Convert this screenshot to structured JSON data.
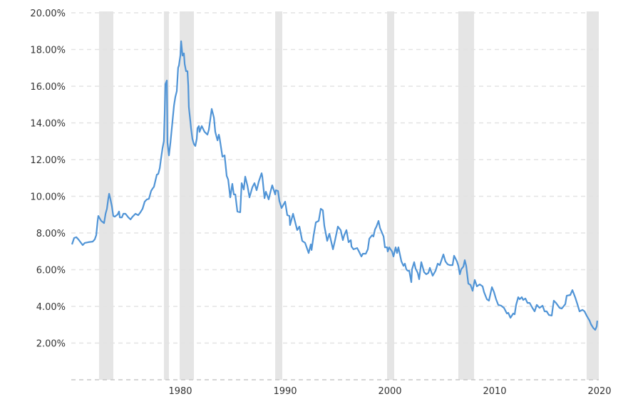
{
  "chart_data": {
    "type": "line",
    "title": "",
    "xlabel": "",
    "ylabel": "",
    "xlim": [
      1971.02,
      2021.36
    ],
    "ylim": [
      0,
      20
    ],
    "grid": true,
    "line_color": "#5094d6",
    "band_color": "#e5e5e5",
    "x_ticks": [
      {
        "year": 1980,
        "label": "1980"
      },
      {
        "year": 1990,
        "label": "1990"
      },
      {
        "year": 2000,
        "label": "2000"
      },
      {
        "year": 2010,
        "label": "2010"
      },
      {
        "year": 2020,
        "label": "2020"
      }
    ],
    "y_ticks": [
      {
        "value": 2,
        "label": "2.00%"
      },
      {
        "value": 4,
        "label": "4.00%"
      },
      {
        "value": 6,
        "label": "6.00%"
      },
      {
        "value": 8,
        "label": "8.00%"
      },
      {
        "value": 10,
        "label": "10.00%"
      },
      {
        "value": 12,
        "label": "12.00%"
      },
      {
        "value": 14,
        "label": "14.00%"
      },
      {
        "value": 16,
        "label": "16.00%"
      },
      {
        "value": 18,
        "label": "18.00%"
      },
      {
        "value": 20,
        "label": "20.00%"
      }
    ],
    "shaded_periods": [
      [
        1973.67,
        1975.03
      ],
      [
        1979.86,
        1980.34
      ],
      [
        1981.36,
        1982.72
      ],
      [
        1990.48,
        1991.16
      ],
      [
        2001.16,
        2001.84
      ],
      [
        2007.96,
        2009.46
      ],
      [
        2020.2,
        2021.36
      ]
    ],
    "series": [
      {
        "points": [
          [
            1971.09,
            7.38
          ],
          [
            1971.29,
            7.73
          ],
          [
            1971.5,
            7.77
          ],
          [
            1971.7,
            7.65
          ],
          [
            1971.9,
            7.5
          ],
          [
            1972.11,
            7.34
          ],
          [
            1972.31,
            7.46
          ],
          [
            1972.65,
            7.5
          ],
          [
            1973.06,
            7.53
          ],
          [
            1973.26,
            7.65
          ],
          [
            1973.4,
            7.88
          ],
          [
            1973.54,
            8.66
          ],
          [
            1973.6,
            8.93
          ],
          [
            1973.88,
            8.66
          ],
          [
            1974.15,
            8.54
          ],
          [
            1974.29,
            9.05
          ],
          [
            1974.42,
            9.32
          ],
          [
            1974.56,
            9.9
          ],
          [
            1974.63,
            10.14
          ],
          [
            1974.76,
            9.83
          ],
          [
            1974.9,
            9.44
          ],
          [
            1975.03,
            8.93
          ],
          [
            1975.17,
            8.89
          ],
          [
            1975.44,
            9.01
          ],
          [
            1975.58,
            9.17
          ],
          [
            1975.65,
            8.85
          ],
          [
            1975.85,
            8.85
          ],
          [
            1975.99,
            9.05
          ],
          [
            1976.19,
            9.05
          ],
          [
            1976.46,
            8.85
          ],
          [
            1976.67,
            8.74
          ],
          [
            1976.87,
            8.89
          ],
          [
            1977.14,
            9.05
          ],
          [
            1977.41,
            8.97
          ],
          [
            1977.62,
            9.13
          ],
          [
            1977.82,
            9.32
          ],
          [
            1978.03,
            9.71
          ],
          [
            1978.23,
            9.83
          ],
          [
            1978.43,
            9.86
          ],
          [
            1978.64,
            10.29
          ],
          [
            1978.77,
            10.41
          ],
          [
            1978.91,
            10.52
          ],
          [
            1979.18,
            11.18
          ],
          [
            1979.32,
            11.22
          ],
          [
            1979.46,
            11.53
          ],
          [
            1979.59,
            12.08
          ],
          [
            1979.73,
            12.62
          ],
          [
            1979.86,
            13.01
          ],
          [
            1979.93,
            14.49
          ],
          [
            1980.0,
            16.12
          ],
          [
            1980.14,
            16.31
          ],
          [
            1980.2,
            12.93
          ],
          [
            1980.34,
            12.23
          ],
          [
            1980.48,
            12.93
          ],
          [
            1980.68,
            14.1
          ],
          [
            1980.82,
            14.95
          ],
          [
            1980.95,
            15.42
          ],
          [
            1981.09,
            15.73
          ],
          [
            1981.22,
            17.01
          ],
          [
            1981.29,
            17.13
          ],
          [
            1981.43,
            17.67
          ],
          [
            1981.5,
            18.45
          ],
          [
            1981.63,
            17.67
          ],
          [
            1981.77,
            17.79
          ],
          [
            1981.84,
            17.2
          ],
          [
            1981.97,
            16.82
          ],
          [
            1982.11,
            16.82
          ],
          [
            1982.18,
            16.04
          ],
          [
            1982.24,
            14.87
          ],
          [
            1982.38,
            14.1
          ],
          [
            1982.45,
            13.71
          ],
          [
            1982.58,
            13.13
          ],
          [
            1982.72,
            12.85
          ],
          [
            1982.86,
            12.74
          ],
          [
            1982.99,
            13.13
          ],
          [
            1983.06,
            13.71
          ],
          [
            1983.2,
            13.83
          ],
          [
            1983.26,
            13.51
          ],
          [
            1983.47,
            13.83
          ],
          [
            1983.74,
            13.51
          ],
          [
            1984.01,
            13.36
          ],
          [
            1984.15,
            13.63
          ],
          [
            1984.42,
            14.76
          ],
          [
            1984.63,
            14.29
          ],
          [
            1984.76,
            13.51
          ],
          [
            1984.97,
            13.05
          ],
          [
            1985.1,
            13.36
          ],
          [
            1985.17,
            13.2
          ],
          [
            1985.44,
            12.16
          ],
          [
            1985.65,
            12.23
          ],
          [
            1985.85,
            11.11
          ],
          [
            1985.99,
            10.91
          ],
          [
            1986.19,
            9.94
          ],
          [
            1986.39,
            10.68
          ],
          [
            1986.53,
            10.1
          ],
          [
            1986.67,
            10.1
          ],
          [
            1986.87,
            9.17
          ],
          [
            1987.14,
            9.13
          ],
          [
            1987.28,
            10.72
          ],
          [
            1987.48,
            10.37
          ],
          [
            1987.62,
            11.07
          ],
          [
            1987.82,
            10.6
          ],
          [
            1988.03,
            9.94
          ],
          [
            1988.3,
            10.49
          ],
          [
            1988.5,
            10.72
          ],
          [
            1988.71,
            10.33
          ],
          [
            1988.91,
            10.8
          ],
          [
            1989.18,
            11.26
          ],
          [
            1989.25,
            11.07
          ],
          [
            1989.46,
            9.9
          ],
          [
            1989.59,
            10.25
          ],
          [
            1989.86,
            9.83
          ],
          [
            1990.07,
            10.33
          ],
          [
            1990.2,
            10.6
          ],
          [
            1990.48,
            10.1
          ],
          [
            1990.54,
            10.33
          ],
          [
            1990.75,
            10.29
          ],
          [
            1990.88,
            9.75
          ],
          [
            1991.09,
            9.36
          ],
          [
            1991.43,
            9.71
          ],
          [
            1991.63,
            8.97
          ],
          [
            1991.84,
            8.93
          ],
          [
            1991.9,
            8.43
          ],
          [
            1992.18,
            9.05
          ],
          [
            1992.58,
            8.16
          ],
          [
            1992.79,
            8.35
          ],
          [
            1993.06,
            7.57
          ],
          [
            1993.33,
            7.46
          ],
          [
            1993.67,
            6.91
          ],
          [
            1993.88,
            7.38
          ],
          [
            1993.95,
            7.07
          ],
          [
            1994.15,
            7.88
          ],
          [
            1994.36,
            8.58
          ],
          [
            1994.63,
            8.66
          ],
          [
            1994.83,
            9.32
          ],
          [
            1995.03,
            9.24
          ],
          [
            1995.17,
            8.39
          ],
          [
            1995.44,
            7.57
          ],
          [
            1995.65,
            7.96
          ],
          [
            1995.99,
            7.11
          ],
          [
            1996.19,
            7.6
          ],
          [
            1996.46,
            8.35
          ],
          [
            1996.73,
            8.16
          ],
          [
            1996.94,
            7.61
          ],
          [
            1997.07,
            7.88
          ],
          [
            1997.28,
            8.16
          ],
          [
            1997.48,
            7.5
          ],
          [
            1997.69,
            7.61
          ],
          [
            1997.76,
            7.26
          ],
          [
            1997.96,
            7.11
          ],
          [
            1998.3,
            7.18
          ],
          [
            1998.44,
            7.03
          ],
          [
            1998.71,
            6.72
          ],
          [
            1998.84,
            6.87
          ],
          [
            1999.12,
            6.87
          ],
          [
            1999.32,
            7.11
          ],
          [
            1999.46,
            7.69
          ],
          [
            1999.73,
            7.88
          ],
          [
            1999.86,
            7.81
          ],
          [
            2000.0,
            8.19
          ],
          [
            2000.14,
            8.35
          ],
          [
            2000.34,
            8.66
          ],
          [
            2000.48,
            8.27
          ],
          [
            2000.82,
            7.81
          ],
          [
            2000.95,
            7.22
          ],
          [
            2001.16,
            7.22
          ],
          [
            2001.22,
            6.99
          ],
          [
            2001.36,
            7.22
          ],
          [
            2001.63,
            6.99
          ],
          [
            2001.77,
            6.72
          ],
          [
            2001.97,
            7.22
          ],
          [
            2002.11,
            6.91
          ],
          [
            2002.24,
            7.22
          ],
          [
            2002.52,
            6.45
          ],
          [
            2002.72,
            6.21
          ],
          [
            2002.86,
            6.33
          ],
          [
            2002.99,
            6.02
          ],
          [
            2003.13,
            5.94
          ],
          [
            2003.27,
            5.94
          ],
          [
            2003.47,
            5.32
          ],
          [
            2003.54,
            6.02
          ],
          [
            2003.74,
            6.41
          ],
          [
            2003.88,
            6.06
          ],
          [
            2004.08,
            5.83
          ],
          [
            2004.22,
            5.48
          ],
          [
            2004.42,
            6.41
          ],
          [
            2004.69,
            5.86
          ],
          [
            2004.9,
            5.75
          ],
          [
            2005.1,
            5.83
          ],
          [
            2005.24,
            6.1
          ],
          [
            2005.51,
            5.67
          ],
          [
            2005.78,
            5.94
          ],
          [
            2005.99,
            6.33
          ],
          [
            2006.19,
            6.25
          ],
          [
            2006.53,
            6.83
          ],
          [
            2006.73,
            6.45
          ],
          [
            2006.94,
            6.29
          ],
          [
            2007.14,
            6.25
          ],
          [
            2007.41,
            6.25
          ],
          [
            2007.55,
            6.76
          ],
          [
            2007.82,
            6.45
          ],
          [
            2007.96,
            6.21
          ],
          [
            2008.1,
            5.75
          ],
          [
            2008.23,
            6.02
          ],
          [
            2008.44,
            6.17
          ],
          [
            2008.57,
            6.52
          ],
          [
            2008.71,
            6.21
          ],
          [
            2008.91,
            5.24
          ],
          [
            2009.12,
            5.17
          ],
          [
            2009.32,
            4.85
          ],
          [
            2009.52,
            5.44
          ],
          [
            2009.73,
            5.09
          ],
          [
            2010.0,
            5.2
          ],
          [
            2010.27,
            5.09
          ],
          [
            2010.41,
            4.78
          ],
          [
            2010.68,
            4.39
          ],
          [
            2010.88,
            4.31
          ],
          [
            2011.16,
            5.05
          ],
          [
            2011.36,
            4.78
          ],
          [
            2011.56,
            4.39
          ],
          [
            2011.77,
            4.08
          ],
          [
            2012.04,
            4.04
          ],
          [
            2012.31,
            3.92
          ],
          [
            2012.59,
            3.61
          ],
          [
            2012.72,
            3.65
          ],
          [
            2012.93,
            3.38
          ],
          [
            2013.2,
            3.61
          ],
          [
            2013.33,
            3.57
          ],
          [
            2013.47,
            4.08
          ],
          [
            2013.67,
            4.5
          ],
          [
            2013.81,
            4.39
          ],
          [
            2014.01,
            4.5
          ],
          [
            2014.15,
            4.35
          ],
          [
            2014.35,
            4.43
          ],
          [
            2014.56,
            4.19
          ],
          [
            2014.76,
            4.19
          ],
          [
            2015.03,
            3.92
          ],
          [
            2015.24,
            3.73
          ],
          [
            2015.44,
            4.08
          ],
          [
            2015.71,
            3.92
          ],
          [
            2015.99,
            4.04
          ],
          [
            2016.19,
            3.73
          ],
          [
            2016.39,
            3.73
          ],
          [
            2016.6,
            3.53
          ],
          [
            2016.87,
            3.5
          ],
          [
            2017.07,
            4.31
          ],
          [
            2017.28,
            4.19
          ],
          [
            2017.62,
            3.92
          ],
          [
            2017.82,
            3.88
          ],
          [
            2018.16,
            4.12
          ],
          [
            2018.3,
            4.58
          ],
          [
            2018.64,
            4.62
          ],
          [
            2018.84,
            4.89
          ],
          [
            2019.12,
            4.47
          ],
          [
            2019.32,
            4.12
          ],
          [
            2019.52,
            3.73
          ],
          [
            2019.8,
            3.81
          ],
          [
            2020.0,
            3.73
          ],
          [
            2020.2,
            3.5
          ],
          [
            2020.48,
            3.22
          ],
          [
            2020.61,
            3.03
          ],
          [
            2020.82,
            2.83
          ],
          [
            2021.02,
            2.72
          ],
          [
            2021.16,
            2.91
          ],
          [
            2021.22,
            3.22
          ]
        ]
      }
    ]
  }
}
